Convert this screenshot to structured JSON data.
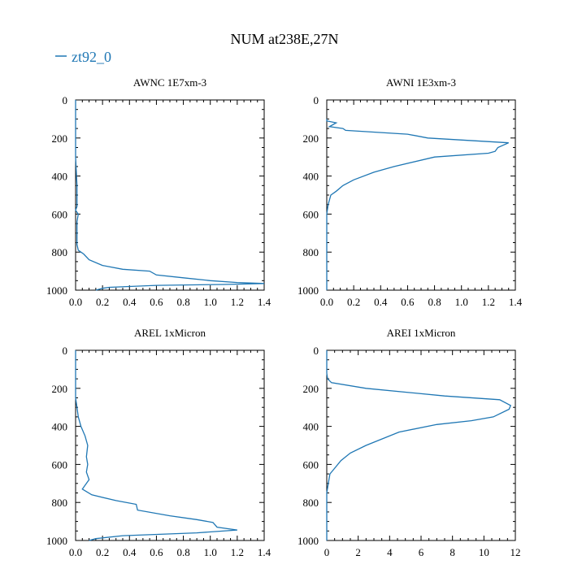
{
  "figure": {
    "title": "NUM at238E,27N",
    "legend": {
      "label": "zt92_0",
      "color": "#1f77b4"
    }
  },
  "chart_data": [
    {
      "type": "line",
      "title": "AWNC  1E7xm-3",
      "xlim": [
        0,
        1.4
      ],
      "ylim": [
        1000,
        0
      ],
      "xticks": [
        "0.0",
        "0.2",
        "0.4",
        "0.6",
        "0.8",
        "1.0",
        "1.2",
        "1.4"
      ],
      "yticks": [
        "0",
        "200",
        "400",
        "600",
        "800",
        "1000"
      ],
      "series": [
        {
          "name": "zt92_0",
          "color": "#1f77b4",
          "x": [
            0,
            0,
            0,
            0.01,
            0.01,
            0.0,
            0.02,
            0.01,
            0.01,
            0.01,
            0.02,
            0.04,
            0.06,
            0.1,
            0.2,
            0.35,
            0.55,
            0.6,
            0.8,
            1.0,
            1.2,
            1.4,
            1.1,
            0.6,
            0.25,
            0.2,
            0.15
          ],
          "y": [
            0,
            100,
            300,
            450,
            560,
            580,
            600,
            640,
            700,
            760,
            790,
            800,
            810,
            840,
            870,
            890,
            900,
            920,
            935,
            950,
            960,
            965,
            970,
            975,
            985,
            990,
            1000
          ]
        }
      ]
    },
    {
      "type": "line",
      "title": "AWNI  1E3xm-3",
      "xlim": [
        0,
        1.4
      ],
      "ylim": [
        1000,
        0
      ],
      "xticks": [
        "0.0",
        "0.2",
        "0.4",
        "0.6",
        "0.8",
        "1.0",
        "1.2",
        "1.4"
      ],
      "yticks": [
        "0",
        "200",
        "400",
        "600",
        "800",
        "1000"
      ],
      "series": [
        {
          "name": "zt92_0",
          "color": "#1f77b4",
          "x": [
            0,
            0.0,
            0.07,
            0.02,
            0.12,
            0.14,
            0.6,
            0.75,
            1.35,
            1.27,
            1.25,
            1.2,
            0.8,
            0.5,
            0.35,
            0.2,
            0.12,
            0.07,
            0.03,
            0.01,
            0.0,
            0.0,
            0.0
          ],
          "y": [
            100,
            110,
            120,
            140,
            150,
            160,
            180,
            200,
            225,
            250,
            270,
            280,
            300,
            350,
            380,
            420,
            450,
            480,
            500,
            550,
            600,
            800,
            1000
          ]
        }
      ]
    },
    {
      "type": "line",
      "title": "AREL  1xMicron",
      "xlim": [
        0,
        1.4
      ],
      "ylim": [
        1000,
        0
      ],
      "xticks": [
        "0.0",
        "0.2",
        "0.4",
        "0.6",
        "0.8",
        "1.0",
        "1.2",
        "1.4"
      ],
      "yticks": [
        "0",
        "200",
        "400",
        "600",
        "800",
        "1000"
      ],
      "series": [
        {
          "name": "zt92_0",
          "color": "#1f77b4",
          "x": [
            0,
            0.0,
            0.01,
            0.02,
            0.04,
            0.07,
            0.09,
            0.08,
            0.09,
            0.08,
            0.1,
            0.08,
            0.05,
            0.12,
            0.3,
            0.45,
            0.46,
            0.7,
            0.9,
            1.02,
            1.05,
            1.2,
            0.9,
            0.35,
            0.15,
            0.1
          ],
          "y": [
            0,
            250,
            300,
            350,
            400,
            450,
            500,
            560,
            600,
            640,
            680,
            700,
            730,
            760,
            790,
            810,
            840,
            870,
            890,
            905,
            930,
            945,
            960,
            975,
            990,
            1000
          ]
        }
      ]
    },
    {
      "type": "line",
      "title": "AREI  1xMicron",
      "xlim": [
        0,
        12
      ],
      "ylim": [
        1000,
        0
      ],
      "xticks": [
        "0",
        "2",
        "4",
        "6",
        "8",
        "10",
        "12"
      ],
      "yticks": [
        "0",
        "200",
        "400",
        "600",
        "800",
        "1000"
      ],
      "series": [
        {
          "name": "zt92_0",
          "color": "#1f77b4",
          "x": [
            0,
            0.0,
            0.05,
            0.3,
            2.5,
            7.5,
            11.0,
            11.7,
            11.6,
            10.6,
            9.2,
            7.0,
            4.6,
            2.5,
            1.5,
            0.9,
            0.5,
            0.2,
            0.1,
            0.0,
            0.0
          ],
          "y": [
            0,
            120,
            150,
            170,
            200,
            240,
            260,
            290,
            310,
            350,
            370,
            390,
            430,
            500,
            540,
            580,
            620,
            650,
            700,
            750,
            1000
          ]
        }
      ]
    }
  ]
}
